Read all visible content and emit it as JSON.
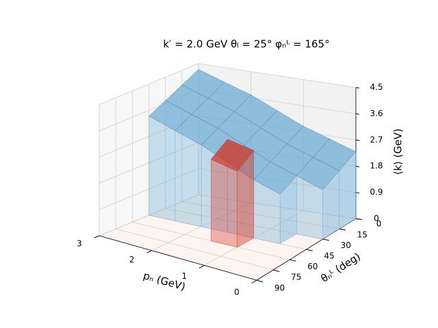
{
  "chart_data": {
    "type": "surface3d",
    "title": "k′ = 2.0 GeV   θₗ = 25°   φₙᴸ = 165°",
    "xlabel": "pₙ (GeV)",
    "ylabel": "θₙᴸ (deg)",
    "zlabel": "⟨k⟩ (GeV)",
    "x": [
      0,
      0.5,
      1,
      1.5,
      2,
      2.5,
      3
    ],
    "y": [
      0,
      15,
      30,
      45,
      60,
      75,
      90
    ],
    "xlim": [
      0,
      3
    ],
    "ylim": [
      0,
      90
    ],
    "zlim": [
      0,
      4.5
    ],
    "xticks": [
      0,
      1,
      2,
      3
    ],
    "yticks": [
      0,
      15,
      30,
      45,
      60,
      75,
      90
    ],
    "zticks": [
      0.0,
      {
        "value": 0.9,
        "label": "0.9"
      },
      {
        "value": 1.8,
        "label": "1.8"
      },
      {
        "value": 2.7,
        "label": "2.7"
      },
      {
        "value": 3.6,
        "label": "3.6"
      },
      {
        "value": 4.5,
        "label": "4.5"
      }
    ],
    "grid": true,
    "series": [
      {
        "color": "#6baed6",
        "z": [
          [
            2.3,
            2.6,
            2.9,
            3.3,
            3.7,
            4.0,
            4.3
          ],
          [
            2.0,
            2.3,
            2.6,
            3.0,
            3.4,
            3.7,
            4.0
          ],
          [
            1.7,
            2.0,
            2.3,
            2.7,
            3.1,
            3.4,
            3.7
          ],
          [
            null,
            1.7,
            2.0,
            2.4,
            2.8,
            3.1,
            3.4
          ],
          [
            null,
            null,
            null,
            null,
            null,
            null,
            null
          ],
          [
            null,
            null,
            null,
            null,
            null,
            null,
            null
          ],
          [
            null,
            null,
            null,
            null,
            null,
            null,
            null
          ]
        ]
      },
      {
        "color": "#d7301f",
        "z": [
          [
            null,
            null,
            null,
            null,
            null,
            null,
            null
          ],
          [
            null,
            null,
            null,
            null,
            null,
            null,
            null
          ],
          [
            null,
            null,
            null,
            null,
            null,
            null,
            null
          ],
          [
            null,
            null,
            3.0,
            3.2,
            null,
            null,
            null
          ],
          [
            null,
            null,
            2.6,
            2.8,
            null,
            null,
            null
          ],
          [
            null,
            null,
            null,
            null,
            null,
            null,
            null
          ],
          [
            null,
            null,
            null,
            null,
            null,
            null,
            null
          ]
        ]
      }
    ]
  }
}
